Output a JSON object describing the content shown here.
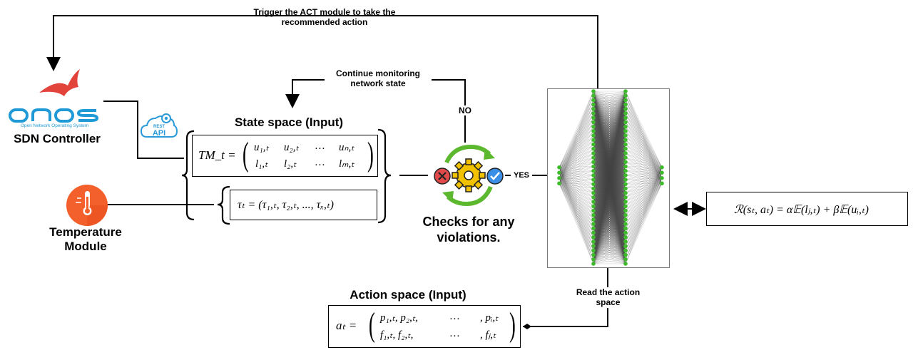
{
  "labels": {
    "trigger": "Trigger the ACT module to take the recommended action",
    "continue": "Continue monitoring network state",
    "no": "NO",
    "yes": "YES",
    "read_action": "Read the action space",
    "state_space": "State space (Input)",
    "action_space": "Action space (Input)",
    "checks": "Checks for any violations.",
    "sdn_controller": "SDN Controller",
    "temperature_module": "Temperature Module",
    "onos_wordmark": "ONOS",
    "onos_tagline": "Open Network Operating System",
    "rest": "REST",
    "api": "API"
  },
  "formulas": {
    "tm_lhs": "TM_t =",
    "tm_row1": [
      "u₁,ₜ",
      "u₂,ₜ",
      "…",
      "uₙ,ₜ"
    ],
    "tm_row2": [
      "l₁,ₜ",
      "l₂,ₜ",
      "…",
      "lₘ,ₜ"
    ],
    "tau": "τₜ = (τ₁,ₜ, τ₂,ₜ, ..., τₓ,ₜ)",
    "a_lhs": "aₜ =",
    "a_row1": [
      "p₁,ₜ, p₂,ₜ,",
      "…",
      ", pᵢ,ₜ"
    ],
    "a_row2": [
      "f₁,ₜ, f₂,ₜ,",
      "…",
      ", fⱼ,ₜ"
    ],
    "reward": "ℛ(sₜ, aₜ) = α𝔼(lⱼ,ₜ) + β𝔼(uᵢ,ₜ)"
  },
  "colors": {
    "onos_blue": "#1f9ad6",
    "onos_red": "#e2433a",
    "rest_blue": "#2b9ad9",
    "temp_orange": "#f4602c",
    "gear_yellow": "#f2c200",
    "arrow_green": "#5cb82e",
    "x_red": "#e14a4a",
    "check_blue": "#3a8ee6",
    "node_green": "#3dba2a"
  },
  "icons": [
    "onos-bird-icon",
    "rest-api-cloud-icon",
    "thermometer-icon",
    "gear-check-cycle-icon",
    "neural-network-icon"
  ],
  "neural_network": {
    "input_nodes": 4,
    "hidden_layer_1_nodes": 40,
    "hidden_layer_2_nodes": 40,
    "output_nodes": 4
  }
}
